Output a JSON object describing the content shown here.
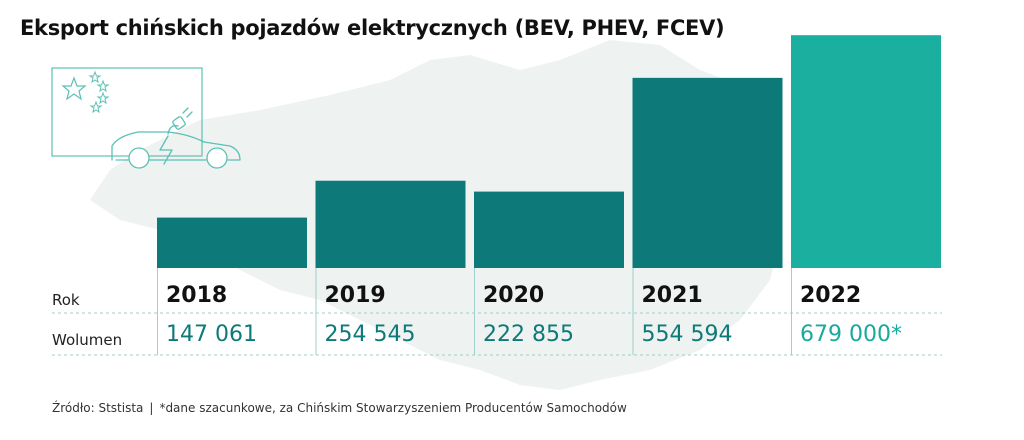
{
  "title": "Eksport chińskich pojazdów elektrycznych (BEV, PHEV, FCEV)",
  "row_labels": {
    "year": "Rok",
    "volume": "Wolumen"
  },
  "chart_data": {
    "type": "bar",
    "title": "Eksport chińskich pojazdów elektrycznych (BEV, PHEV, FCEV)",
    "xlabel": "",
    "ylabel": "",
    "categories": [
      "2018",
      "2019",
      "2020",
      "2021",
      "2022"
    ],
    "values": [
      147061,
      254545,
      222855,
      554594,
      679000
    ],
    "value_labels": [
      "147 061",
      "254 545",
      "222 855",
      "554 594",
      "679 000*"
    ],
    "estimated": [
      false,
      false,
      false,
      false,
      true
    ],
    "ylim": [
      0,
      700000
    ],
    "grid": false,
    "legend": "none"
  },
  "colors": {
    "bar": "#0d7a79",
    "bar_estimated": "#1aaf9e",
    "map": "#eef2f0",
    "divider": "#9fd0ca",
    "flag_line": "#5cc0b4"
  },
  "footer": {
    "source": "Źródło: Ststista",
    "separator": "|",
    "note": "*dane szacunkowe, za Chińskim Stowarzyszeniem Producentów Samochodów"
  },
  "icons": [
    "china-map-icon",
    "china-flag-icon",
    "electric-car-icon",
    "charging-plug-icon"
  ]
}
